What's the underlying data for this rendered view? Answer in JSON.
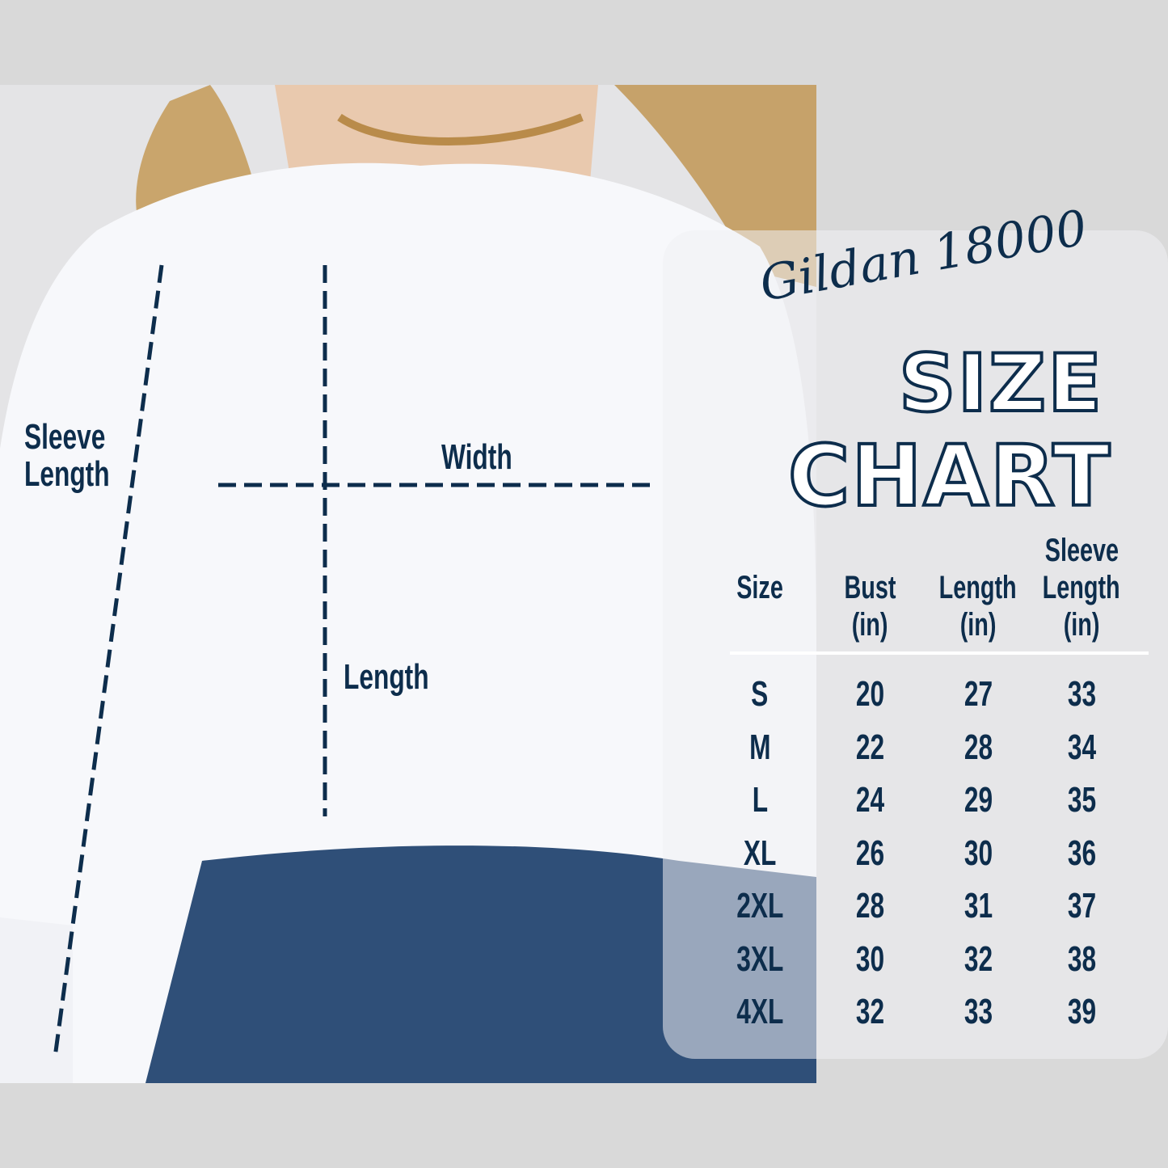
{
  "brand_title": "Gildan 18000",
  "heading_line1": "SIZE",
  "heading_line2": "CHART",
  "diagram_labels": {
    "sleeve": "Sleeve Length",
    "sleeve_line1": "Sleeve",
    "sleeve_line2": "Length",
    "width": "Width",
    "length": "Length"
  },
  "table": {
    "headers": [
      {
        "line1": "",
        "line2": "Size",
        "line3": ""
      },
      {
        "line1": "",
        "line2": "Bust",
        "line3": "(in)"
      },
      {
        "line1": "",
        "line2": "Length",
        "line3": "(in)"
      },
      {
        "line1": "Sleeve",
        "line2": "Length",
        "line3": "(in)"
      }
    ],
    "rows": [
      [
        "S",
        "20",
        "27",
        "33"
      ],
      [
        "M",
        "22",
        "28",
        "34"
      ],
      [
        "L",
        "24",
        "29",
        "35"
      ],
      [
        "XL",
        "26",
        "30",
        "36"
      ],
      [
        "2XL",
        "28",
        "31",
        "37"
      ],
      [
        "3XL",
        "30",
        "32",
        "38"
      ],
      [
        "4XL",
        "32",
        "33",
        "39"
      ]
    ]
  },
  "colors": {
    "text": "#0d2d4c",
    "background": "#d9d9d9",
    "sweatshirt": "#f7f8fb",
    "jeans": "#2f4f78"
  }
}
